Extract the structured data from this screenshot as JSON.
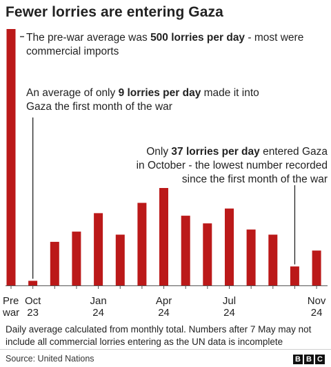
{
  "title": "Fewer lorries are entering Gaza",
  "chart_data": {
    "type": "bar",
    "title": "Fewer lorries are entering Gaza",
    "categories": [
      "Pre war",
      "Oct 23",
      "Nov 23",
      "Dec 23",
      "Jan 24",
      "Feb 24",
      "Mar 24",
      "Apr 24",
      "May 24",
      "Jun 24",
      "Jul 24",
      "Aug 24",
      "Sep 24",
      "Oct 24",
      "Nov 24"
    ],
    "values": [
      500,
      9,
      85,
      105,
      141,
      99,
      161,
      190,
      136,
      121,
      150,
      109,
      99,
      37,
      68
    ],
    "tick_labels": [
      {
        "index": 0,
        "lines": [
          "Pre",
          "war"
        ]
      },
      {
        "index": 1,
        "lines": [
          "Oct",
          "23"
        ]
      },
      {
        "index": 4,
        "lines": [
          "Jan",
          "24"
        ]
      },
      {
        "index": 7,
        "lines": [
          "Apr",
          "24"
        ]
      },
      {
        "index": 10,
        "lines": [
          "Jul",
          "24"
        ]
      },
      {
        "index": 14,
        "lines": [
          "Nov",
          "24"
        ]
      }
    ],
    "ylim": [
      0,
      500
    ],
    "grid": false,
    "bar_color": "#bb1919"
  },
  "annotations": {
    "prewar": {
      "pre": "The pre-war average was ",
      "bold": "500 lorries per day",
      "post": " - most were commercial imports"
    },
    "oct23": {
      "pre": "An average of only ",
      "bold": "9 lorries per day",
      "post": " made it into Gaza the first month of the war"
    },
    "oct24": {
      "pre": "Only ",
      "bold": "37 lorries per day",
      "post": " entered Gaza in October - the lowest number recorded since the first month of the war"
    }
  },
  "note": "Daily average calculated from monthly total. Numbers after 7 May may not include all commercial lorries entering as the UN data is incomplete",
  "source": "Source: United Nations",
  "logo": [
    "B",
    "B",
    "C"
  ]
}
